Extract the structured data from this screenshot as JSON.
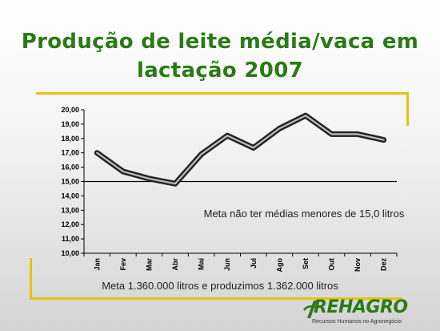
{
  "slide": {
    "title_line1": "Produção de leite média/vaca em",
    "title_line2": "lactação 2007",
    "footnote": "Meta 1.360.000 litros e produzimos 1.362.000 litros",
    "logo_text": "REHAGRO",
    "logo_subtitle": "Recursos Humanos no Agronegócio",
    "accent_color": "#e8c10d",
    "title_color": "#2a7a16"
  },
  "chart_data": {
    "type": "line",
    "categories": [
      "Jan",
      "Fev",
      "Mar",
      "Abr",
      "Mai",
      "Jun",
      "Jul",
      "Ago",
      "Set",
      "Out",
      "Nov",
      "Dez"
    ],
    "series": [
      {
        "values": [
          17.0,
          15.7,
          15.2,
          14.85,
          16.9,
          18.2,
          17.35,
          18.7,
          19.6,
          18.3,
          18.3,
          17.9
        ]
      }
    ],
    "yticks": [
      "10,00",
      "11,00",
      "12,00",
      "13,00",
      "14,00",
      "15,00",
      "16,00",
      "17,00",
      "18,00",
      "19,00",
      "20,00"
    ],
    "ylim": [
      10,
      20
    ],
    "reference_line": 15,
    "annotation": "Meta não ter médias menores de 15,0 litros",
    "grid": false,
    "legend": "none"
  }
}
